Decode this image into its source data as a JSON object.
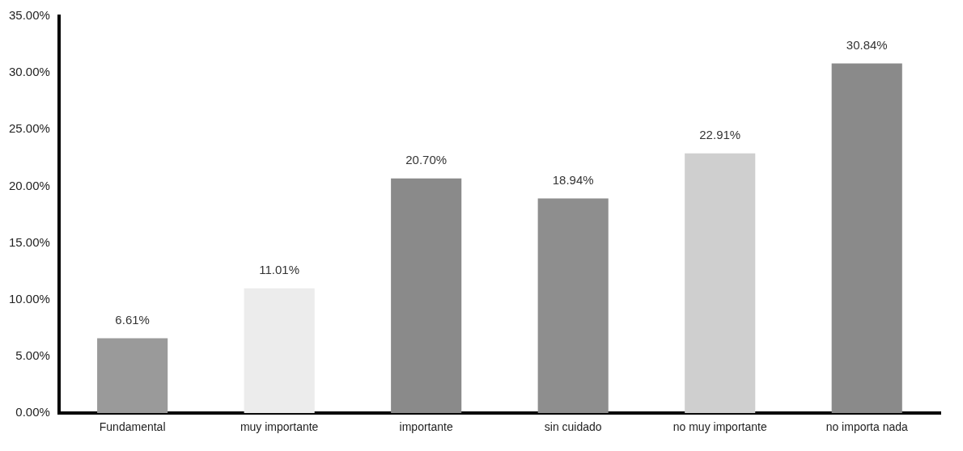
{
  "chart_data": {
    "type": "bar",
    "categories": [
      "Fundamental",
      "muy importante",
      "importante",
      "sin cuidado",
      "no muy importante",
      "no importa nada"
    ],
    "values": [
      6.61,
      11.01,
      20.7,
      18.94,
      22.91,
      30.84
    ],
    "colors": [
      "#9a9a9a",
      "#ececec",
      "#8a8a8a",
      "#8e8e8e",
      "#cfcfcf",
      "#8a8a8a"
    ],
    "value_labels": [
      "6.61%",
      "11.01%",
      "20.70%",
      "18.94%",
      "22.91%",
      "30.84%"
    ],
    "ylim": [
      0,
      35
    ],
    "yticks": [
      {
        "value": 0,
        "label": "0.00%"
      },
      {
        "value": 5,
        "label": "5.00%"
      },
      {
        "value": 10,
        "label": "10.00%"
      },
      {
        "value": 15,
        "label": "15.00%"
      },
      {
        "value": 20,
        "label": "20.00%"
      },
      {
        "value": 25,
        "label": "25.00%"
      },
      {
        "value": 30,
        "label": "30.00%"
      },
      {
        "value": 35,
        "label": "35.00%"
      }
    ],
    "grid": false,
    "legend": false
  }
}
